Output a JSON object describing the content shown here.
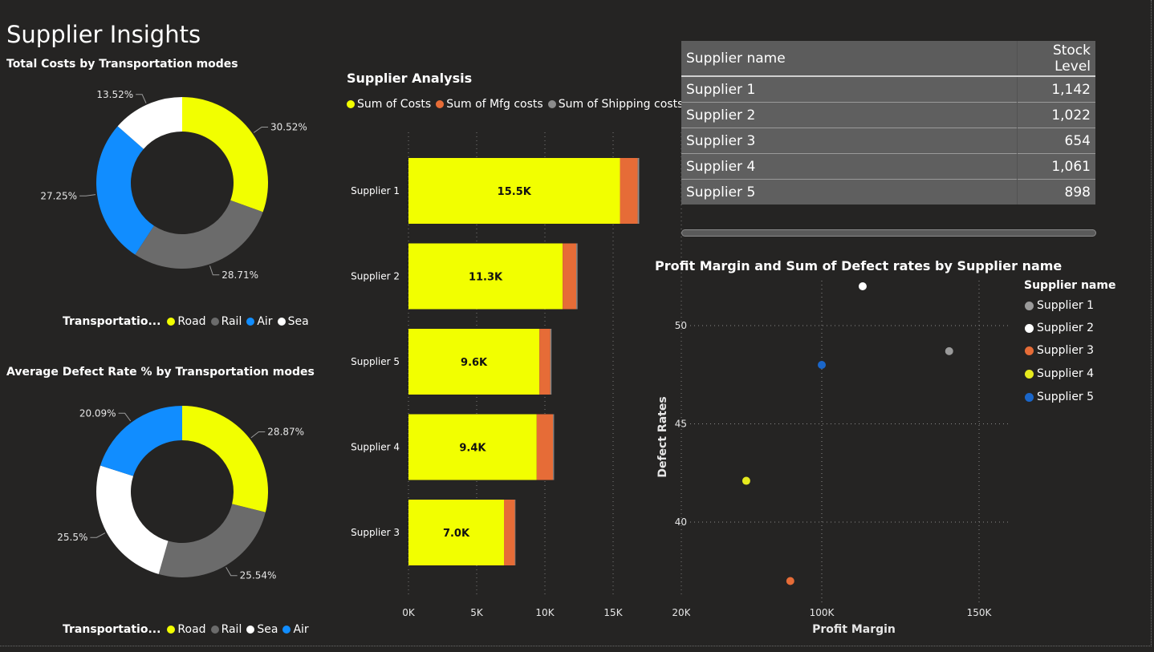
{
  "page_title": "Supplier Insights",
  "colors": {
    "road": "#F2FF00",
    "rail": "#6B6B6B",
    "air": "#118DFF",
    "sea": "#FFFFFF",
    "mfg": "#E66C37",
    "ship": "#8C8C8C",
    "s1": "#9A9A9A",
    "s2": "#FFFFFF",
    "s3": "#E66C37",
    "s4": "#E6EA1E",
    "s5": "#1A66C9"
  },
  "costs_donut": {
    "title": "Total Costs by Transportation modes",
    "legend_title": "Transportatio...",
    "legend": [
      "Road",
      "Rail",
      "Air",
      "Sea"
    ],
    "labels": [
      "30.52%",
      "28.71%",
      "27.25%",
      "13.52%"
    ]
  },
  "defect_donut": {
    "title": "Average Defect Rate % by Transportation modes",
    "legend_title": "Transportatio...",
    "legend": [
      "Road",
      "Rail",
      "Sea",
      "Air"
    ],
    "labels": [
      "28.87%",
      "25.54%",
      "25.5%",
      "20.09%"
    ]
  },
  "supplier_analysis": {
    "title": "Supplier Analysis",
    "legend": [
      "Sum of Costs",
      "Sum of Mfg costs",
      "Sum of Shipping costs"
    ]
  },
  "stock_table": {
    "headers": [
      "Supplier name",
      "Stock Level"
    ],
    "rows": [
      [
        "Supplier 1",
        "1,142"
      ],
      [
        "Supplier 2",
        "1,022"
      ],
      [
        "Supplier 3",
        "654"
      ],
      [
        "Supplier 4",
        "1,061"
      ],
      [
        "Supplier 5",
        "898"
      ]
    ]
  },
  "scatter": {
    "title": "Profit Margin and Sum of Defect rates by Supplier name",
    "legend_title": "Supplier name",
    "legend": [
      "Supplier 1",
      "Supplier 2",
      "Supplier 3",
      "Supplier 4",
      "Supplier 5"
    ]
  },
  "chart_data": [
    {
      "type": "pie",
      "title": "Total Costs by Transportation modes",
      "categories": [
        "Road",
        "Rail",
        "Air",
        "Sea"
      ],
      "values": [
        30.52,
        28.71,
        27.25,
        13.52
      ]
    },
    {
      "type": "pie",
      "title": "Average Defect Rate % by Transportation modes",
      "categories": [
        "Road",
        "Rail",
        "Sea",
        "Air"
      ],
      "values": [
        28.87,
        25.54,
        25.5,
        20.09
      ]
    },
    {
      "type": "bar",
      "title": "Supplier Analysis",
      "categories": [
        "Supplier 1",
        "Supplier 2",
        "Supplier 5",
        "Supplier 4",
        "Supplier 3"
      ],
      "series": [
        {
          "name": "Sum of Costs",
          "values": [
            15500,
            11300,
            9600,
            9400,
            7000
          ],
          "labels": [
            "15.5K",
            "11.3K",
            "9.6K",
            "9.4K",
            "7.0K"
          ]
        },
        {
          "name": "Sum of Mfg costs",
          "values": [
            1300,
            1000,
            800,
            1200,
            800
          ]
        },
        {
          "name": "Sum of Shipping costs",
          "values": [
            110,
            90,
            80,
            70,
            40
          ]
        }
      ],
      "xticks": [
        "0K",
        "5K",
        "10K",
        "15K",
        "20K"
      ],
      "xlim": [
        0,
        20000
      ]
    },
    {
      "type": "scatter",
      "title": "Profit Margin and Sum of Defect rates by Supplier name",
      "xlabel": "Profit Margin",
      "ylabel": "Defect Rates",
      "xticks": [
        "100K",
        "150K"
      ],
      "yticks": [
        "40",
        "45",
        "50"
      ],
      "xlim": [
        43000,
        160000
      ],
      "ylim": [
        37,
        52
      ],
      "series": [
        {
          "name": "Supplier 1",
          "x": 140500,
          "y": 48.7
        },
        {
          "name": "Supplier 2",
          "x": 113000,
          "y": 52.0
        },
        {
          "name": "Supplier 3",
          "x": 90000,
          "y": 37.0
        },
        {
          "name": "Supplier 4",
          "x": 76000,
          "y": 42.1
        },
        {
          "name": "Supplier 5",
          "x": 100000,
          "y": 48.0
        }
      ]
    }
  ]
}
